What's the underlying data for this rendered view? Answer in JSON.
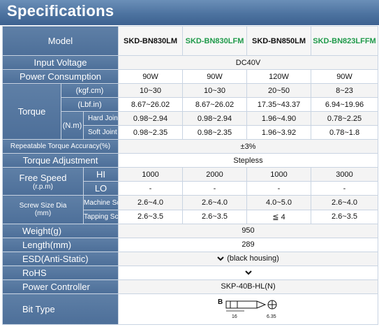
{
  "header": {
    "title": "Specifications"
  },
  "columns": [
    {
      "name": "SKD-BN830LM",
      "color": "#111111"
    },
    {
      "name": "SKD-BN830LFM",
      "color": "#1f9a4a"
    },
    {
      "name": "SKD-BN850LM",
      "color": "#111111"
    },
    {
      "name": "SKD-BN823LFFM",
      "color": "#1f9a4a"
    }
  ],
  "rows": {
    "model": {
      "label": "Model"
    },
    "input_voltage": {
      "label": "Input Voltage",
      "value": "DC40V"
    },
    "power": {
      "label": "Power Consumption",
      "values": [
        "90W",
        "90W",
        "120W",
        "90W"
      ]
    },
    "torque": {
      "label": "Torque",
      "kgf": {
        "unit": "(kgf.cm)",
        "values": [
          "10~30",
          "10~30",
          "20~50",
          "8~23"
        ]
      },
      "lbf": {
        "unit": "(Lbf.in)",
        "values": [
          "8.67~26.02",
          "8.67~26.02",
          "17.35~43.37",
          "6.94~19.96"
        ]
      },
      "nm_unit": "(N.m)",
      "hard": {
        "label": "Hard Joint",
        "values": [
          "0.98~2.94",
          "0.98~2.94",
          "1.96~4.90",
          "0.78~2.25"
        ]
      },
      "soft": {
        "label": "Soft Joint",
        "values": [
          "0.98~2.35",
          "0.98~2.35",
          "1.96~3.92",
          "0.78~1.8"
        ]
      }
    },
    "repeatable_accuracy": {
      "label": "Repeatable Torque Accuracy(%)",
      "value": "±3%"
    },
    "torque_adjustment": {
      "label": "Torque Adjustment",
      "value": "Stepless"
    },
    "free_speed": {
      "label": "Free Speed",
      "unit": "(r.p.m)",
      "hi": {
        "label": "HI",
        "values": [
          "1000",
          "2000",
          "1000",
          "3000"
        ]
      },
      "lo": {
        "label": "LO",
        "values": [
          "-",
          "-",
          "-",
          "-"
        ]
      }
    },
    "screw_size": {
      "label": "Screw Size Dia",
      "unit": "(mm)",
      "machine": {
        "label": "Machine Screw",
        "values": [
          "2.6~4.0",
          "2.6~4.0",
          "4.0~5.0",
          "2.6~4.0"
        ]
      },
      "tapping": {
        "label": "Tapping Screw",
        "values": [
          "2.6~3.5",
          "2.6~3.5",
          "≦ 4",
          "2.6~3.5"
        ]
      }
    },
    "weight": {
      "label": "Weight(g)",
      "value": "950"
    },
    "length": {
      "label": "Length(mm)",
      "value": "289"
    },
    "esd": {
      "label": "ESD(Anti-Static)",
      "note": "(black housing)",
      "icon": "checkmark-icon"
    },
    "rohs": {
      "label": "RoHS",
      "icon": "checkmark-icon"
    },
    "power_controller": {
      "label": "Power Controller",
      "value": "SKP-40B-HL(N)"
    },
    "bit_type": {
      "label": "Bit Type",
      "diagram": {
        "letter": "B",
        "dim1": "16",
        "dim2": "6.35"
      }
    }
  }
}
